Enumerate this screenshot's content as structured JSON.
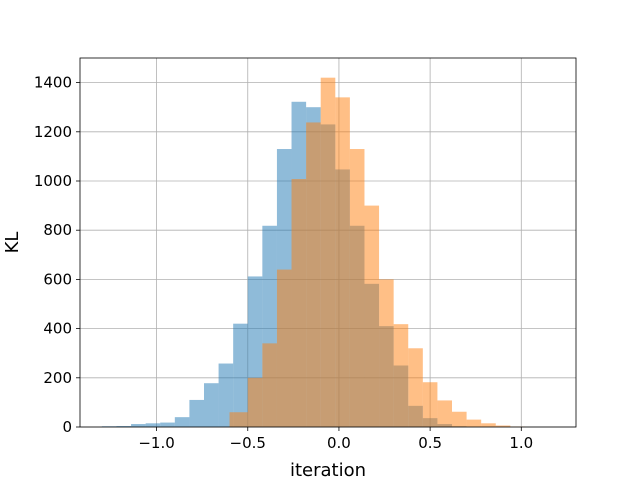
{
  "chart_data": {
    "type": "histogram",
    "title": "",
    "xlabel": "iteration",
    "ylabel": "KL",
    "xlim": [
      -1.42,
      1.3
    ],
    "ylim": [
      0,
      1500
    ],
    "xticks": [
      -1.0,
      -0.5,
      0.0,
      0.5,
      1.0
    ],
    "xtick_labels": [
      "−1.0",
      "−0.5",
      "0.0",
      "0.5",
      "1.0"
    ],
    "yticks": [
      0,
      200,
      400,
      600,
      800,
      1000,
      1200,
      1400
    ],
    "ytick_labels": [
      "0",
      "200",
      "400",
      "600",
      "800",
      "1000",
      "1200",
      "1400"
    ],
    "grid": true,
    "legend": false,
    "series": [
      {
        "color": "#1f77b4",
        "alpha": 0.5,
        "bin_edges": [
          -1.3,
          -1.22,
          -1.14,
          -1.06,
          -0.98,
          -0.9,
          -0.82,
          -0.74,
          -0.66,
          -0.58,
          -0.5,
          -0.42,
          -0.34,
          -0.26,
          -0.18,
          -0.1,
          -0.02,
          0.06,
          0.14,
          0.22,
          0.3,
          0.38,
          0.46,
          0.54,
          0.62,
          0.7
        ],
        "counts": [
          3,
          4,
          12,
          15,
          18,
          40,
          110,
          178,
          258,
          420,
          612,
          818,
          1130,
          1322,
          1300,
          1230,
          1047,
          818,
          582,
          410,
          250,
          86,
          36,
          12,
          3
        ]
      },
      {
        "color": "#ff7f0e",
        "alpha": 0.5,
        "bin_edges": [
          -0.6,
          -0.5,
          -0.42,
          -0.34,
          -0.26,
          -0.18,
          -0.1,
          -0.02,
          0.06,
          0.14,
          0.22,
          0.3,
          0.38,
          0.46,
          0.54,
          0.62,
          0.7,
          0.78,
          0.86,
          0.94,
          1.02
        ],
        "counts": [
          60,
          200,
          340,
          640,
          1008,
          1238,
          1420,
          1340,
          1130,
          900,
          600,
          418,
          320,
          182,
          108,
          62,
          30,
          15,
          6,
          2
        ]
      }
    ]
  }
}
